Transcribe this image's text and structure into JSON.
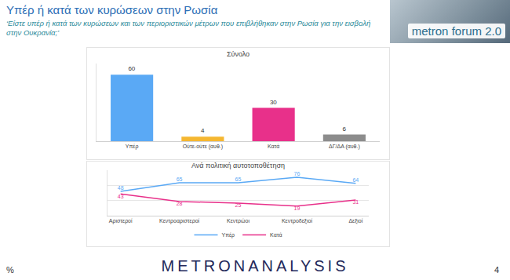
{
  "header": {
    "title": "Υπέρ ή κατά των κυρώσεων στην Ρωσία",
    "subtitle": "‘Είστε υπέρ ή κατά των κυρώσεων και των περιοριστικών μέτρων που επιβλήθηκαν στην Ρωσία για την εισβολή στην Ουκρανία;’",
    "logo": "metron forum 2.0"
  },
  "footer": {
    "brand": "METRONANALYSIS",
    "unit": "%",
    "page": "4"
  },
  "chart_data": [
    {
      "type": "bar",
      "title": "Σύνολο",
      "categories": [
        "Υπέρ",
        "Ούτε-ούτε (αυθ.)",
        "Κατά",
        "ΔΓ/ΔΑ (αυθ.)"
      ],
      "values": [
        60,
        4,
        30,
        6
      ],
      "colors": [
        "#5aa9f5",
        "#f5b731",
        "#e8308a",
        "#8c8c8c"
      ],
      "ylim": [
        0,
        70
      ],
      "data_labels": true,
      "tick_labels": "x",
      "grid": false
    },
    {
      "type": "line",
      "title": "Ανά πολιτική αυτοτοποθέτηση",
      "categories": [
        "Αριστεροί",
        "Κεντροαριστεροί",
        "Κεντρώοι",
        "Κεντροδεξιοί",
        "Δεξιοί"
      ],
      "series": [
        {
          "name": "Υπέρ",
          "color": "#5aa9f5",
          "values": [
            48,
            65,
            65,
            76,
            64
          ]
        },
        {
          "name": "Κατά",
          "color": "#e8308a",
          "values": [
            43,
            28,
            25,
            19,
            31
          ]
        }
      ],
      "ylim": [
        0,
        90
      ],
      "yticks": [
        0,
        30,
        60,
        90
      ],
      "grid": true,
      "data_labels": true,
      "tick_labels": "x",
      "legend": "bottom",
      "line_style": "solid"
    }
  ]
}
